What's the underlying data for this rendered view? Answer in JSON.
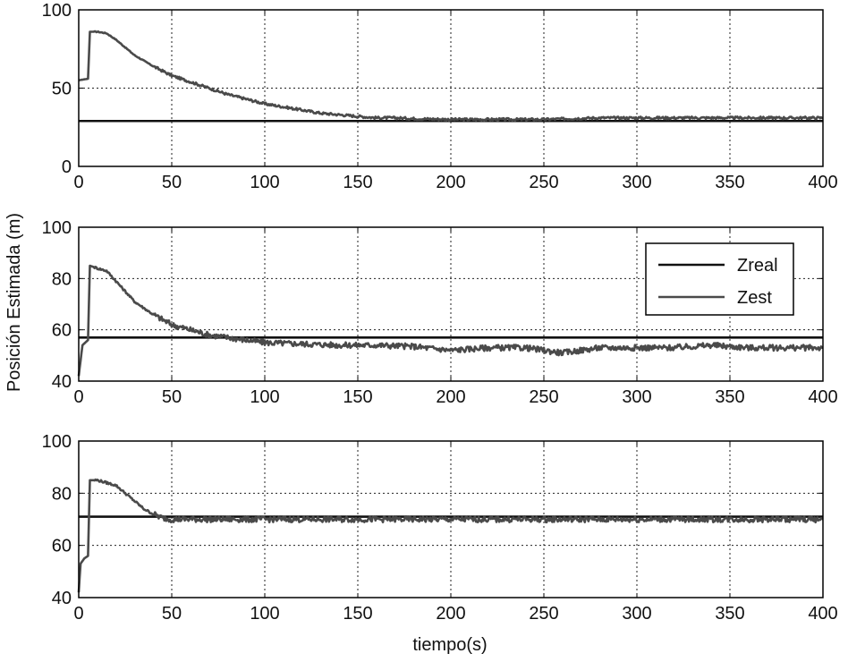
{
  "figure": {
    "ylabel": "Posición Estimada (m)",
    "xlabel": "tiempo(s)"
  },
  "colors": {
    "zreal": "#111111",
    "zest": "#4a4a4a",
    "grid": "#222222",
    "axes": "#000000"
  },
  "chart_data": [
    {
      "type": "line",
      "title": "",
      "xlim": [
        0,
        400
      ],
      "ylim": [
        0,
        100
      ],
      "xticks": [
        0,
        50,
        100,
        150,
        200,
        250,
        300,
        350,
        400
      ],
      "yticks": [
        0,
        50,
        100
      ],
      "grid": true,
      "legend": "none",
      "series": [
        {
          "name": "Zreal",
          "x": [
            0,
            400
          ],
          "y": [
            29,
            29
          ]
        },
        {
          "name": "Zest",
          "x": [
            0,
            5,
            5.5,
            6,
            10,
            15,
            20,
            25,
            30,
            40,
            50,
            60,
            70,
            80,
            90,
            100,
            110,
            120,
            130,
            140,
            150,
            160,
            170,
            180,
            200,
            220,
            250,
            280,
            300,
            330,
            350,
            370,
            400
          ],
          "y": [
            55,
            56,
            70,
            86,
            86,
            85,
            81,
            76,
            71,
            64,
            58,
            54,
            50,
            46,
            43,
            40,
            38,
            36,
            34,
            33,
            32,
            31,
            31,
            30.5,
            30,
            30,
            30,
            31,
            31,
            31,
            31,
            31,
            31
          ]
        }
      ]
    },
    {
      "type": "line",
      "title": "",
      "xlim": [
        0,
        400
      ],
      "ylim": [
        40,
        100
      ],
      "xticks": [
        0,
        50,
        100,
        150,
        200,
        250,
        300,
        350,
        400
      ],
      "yticks": [
        40,
        60,
        80,
        100
      ],
      "grid": true,
      "legend": "top-right",
      "series": [
        {
          "name": "Zreal",
          "x": [
            0,
            400
          ],
          "y": [
            57,
            57
          ]
        },
        {
          "name": "Zest",
          "x": [
            0,
            2,
            5,
            5.5,
            6,
            10,
            15,
            20,
            25,
            30,
            40,
            50,
            60,
            70,
            80,
            90,
            100,
            120,
            140,
            160,
            180,
            200,
            220,
            240,
            260,
            280,
            300,
            320,
            340,
            360,
            380,
            400
          ],
          "y": [
            42,
            54,
            56,
            70,
            85,
            84,
            83,
            79,
            75,
            71,
            66,
            62,
            60,
            58,
            57,
            56,
            55,
            54.5,
            54,
            54,
            53.5,
            52,
            53,
            53,
            51,
            53,
            53,
            53,
            54,
            53,
            53,
            53
          ]
        }
      ]
    },
    {
      "type": "line",
      "title": "",
      "xlim": [
        0,
        400
      ],
      "ylim": [
        40,
        100
      ],
      "xticks": [
        0,
        50,
        100,
        150,
        200,
        250,
        300,
        350,
        400
      ],
      "yticks": [
        40,
        60,
        80,
        100
      ],
      "grid": true,
      "legend": "none",
      "series": [
        {
          "name": "Zreal",
          "x": [
            0,
            400
          ],
          "y": [
            71,
            71
          ]
        },
        {
          "name": "Zest",
          "x": [
            0,
            1,
            3,
            5,
            5.5,
            6,
            10,
            15,
            20,
            25,
            30,
            35,
            40,
            45,
            50,
            60,
            80,
            100,
            150,
            200,
            250,
            300,
            350,
            400
          ],
          "y": [
            42,
            53,
            55,
            56,
            70,
            85,
            85,
            84,
            83,
            80,
            77,
            74,
            72,
            70.5,
            70,
            70,
            70,
            70,
            70,
            70,
            70,
            70,
            70,
            70
          ]
        }
      ]
    }
  ]
}
